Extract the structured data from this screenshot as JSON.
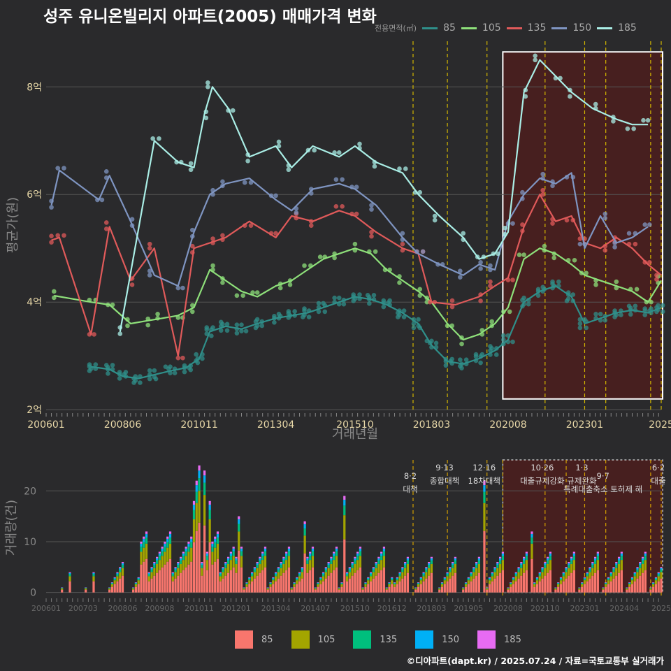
{
  "title": "성주 유니온빌리지 아파트(2005) 매매가격 변화",
  "legend_title": "전용면적(㎡)",
  "credit": "©디아파트(dapt.kr) / 2025.07.24 / 자료=국토교통부 실거래가",
  "colors": {
    "background": "#2a2a2c",
    "grid": "#555555",
    "policy_line": "#d4b800",
    "highlight_fill": "#4a1e1e",
    "highlight_border": "#ffffff"
  },
  "chart_data": [
    {
      "type": "line",
      "name": "price",
      "ylabel": "평균가(원)",
      "xlabel": "거래년월",
      "ylim": [
        1.95,
        8.9
      ],
      "x_range": [
        "2006-01",
        "2025-06"
      ],
      "yticks": [
        2,
        4,
        6,
        8
      ],
      "ytick_labels": [
        "2억",
        "4억",
        "6억",
        "8억"
      ],
      "xtick_labels": [
        "200601",
        "200806",
        "201011",
        "201304",
        "201510",
        "201803",
        "202008",
        "202301",
        "2025"
      ],
      "xtick_values": [
        "2006-01",
        "2008-06",
        "2010-11",
        "2013-04",
        "2015-10",
        "2018-03",
        "2020-08",
        "2023-01",
        "2025-06"
      ],
      "highlight": {
        "x_from": "2020-06",
        "x_to": "2025-06",
        "y_from": 2.2,
        "y_to": 8.65
      },
      "policy_lines": [
        "2017-08",
        "2018-09",
        "2019-12",
        "2021-10",
        "2023-01",
        "2023-09",
        "2025-02",
        "2025-06"
      ],
      "series": [
        {
          "name": "85",
          "color": "#2f8f8a",
          "x": [
            "2007-06",
            "2008-01",
            "2008-06",
            "2008-12",
            "2009-06",
            "2009-12",
            "2010-06",
            "2010-11",
            "2011-03",
            "2011-09",
            "2012-03",
            "2012-09",
            "2013-04",
            "2013-10",
            "2014-04",
            "2014-10",
            "2015-04",
            "2015-10",
            "2016-04",
            "2016-10",
            "2017-04",
            "2017-10",
            "2018-03",
            "2018-09",
            "2019-03",
            "2019-09",
            "2020-03",
            "2020-08",
            "2021-02",
            "2021-08",
            "2022-02",
            "2022-08",
            "2023-01",
            "2023-07",
            "2024-01",
            "2024-07",
            "2025-01",
            "2025-06"
          ],
          "y": [
            2.8,
            2.75,
            2.62,
            2.58,
            2.65,
            2.72,
            2.78,
            2.95,
            3.45,
            3.55,
            3.5,
            3.6,
            3.7,
            3.75,
            3.8,
            3.9,
            4.0,
            4.1,
            4.05,
            3.95,
            3.8,
            3.6,
            3.2,
            2.9,
            2.85,
            2.95,
            3.1,
            3.3,
            4.0,
            4.2,
            4.3,
            4.1,
            3.6,
            3.7,
            3.8,
            3.85,
            3.8,
            3.9
          ]
        },
        {
          "name": "105",
          "color": "#8ee07a",
          "x": [
            "2006-04",
            "2007-06",
            "2008-01",
            "2008-09",
            "2009-03",
            "2009-09",
            "2010-03",
            "2010-09",
            "2011-03",
            "2011-09",
            "2012-03",
            "2012-09",
            "2013-04",
            "2013-10",
            "2014-04",
            "2014-10",
            "2015-04",
            "2015-10",
            "2016-04",
            "2016-10",
            "2017-04",
            "2017-10",
            "2018-03",
            "2018-09",
            "2019-03",
            "2019-09",
            "2020-03",
            "2020-08",
            "2021-02",
            "2021-08",
            "2022-02",
            "2022-08",
            "2023-01",
            "2023-07",
            "2024-01",
            "2024-07",
            "2025-01",
            "2025-06"
          ],
          "y": [
            4.12,
            4.0,
            3.95,
            3.6,
            3.65,
            3.7,
            3.75,
            3.9,
            4.6,
            4.4,
            4.2,
            4.1,
            4.3,
            4.4,
            4.6,
            4.8,
            4.9,
            5.0,
            4.9,
            4.6,
            4.4,
            4.2,
            4.0,
            3.6,
            3.3,
            3.4,
            3.6,
            3.9,
            4.8,
            5.0,
            4.9,
            4.7,
            4.5,
            4.4,
            4.3,
            4.2,
            4.0,
            4.4
          ]
        },
        {
          "name": "135",
          "color": "#e05a5a",
          "x": [
            "2006-03",
            "2006-06",
            "2007-06",
            "2008-01",
            "2008-09",
            "2009-06",
            "2010-03",
            "2010-09",
            "2011-03",
            "2011-09",
            "2012-06",
            "2013-04",
            "2013-10",
            "2014-06",
            "2015-04",
            "2015-10",
            "2016-06",
            "2017-04",
            "2017-10",
            "2018-03",
            "2018-12",
            "2019-09",
            "2020-03",
            "2020-08",
            "2021-02",
            "2021-08",
            "2022-02",
            "2022-08",
            "2023-01",
            "2023-07",
            "2024-01",
            "2024-07",
            "2025-01",
            "2025-06"
          ],
          "y": [
            5.15,
            5.2,
            3.4,
            5.4,
            4.4,
            5.0,
            3.0,
            5.0,
            5.1,
            5.2,
            5.5,
            5.2,
            5.6,
            5.5,
            5.7,
            5.6,
            5.3,
            5.0,
            4.9,
            4.0,
            3.95,
            4.1,
            4.3,
            4.45,
            5.4,
            6.0,
            5.5,
            5.6,
            5.1,
            5.0,
            5.2,
            5.0,
            4.7,
            4.5
          ]
        },
        {
          "name": "150",
          "color": "#7f95c2",
          "x": [
            "2006-03",
            "2006-06",
            "2007-09",
            "2008-01",
            "2008-09",
            "2009-06",
            "2010-03",
            "2010-09",
            "2011-03",
            "2011-09",
            "2012-06",
            "2013-04",
            "2013-10",
            "2014-06",
            "2015-04",
            "2015-10",
            "2016-06",
            "2017-04",
            "2017-10",
            "2018-06",
            "2019-03",
            "2019-09",
            "2020-03",
            "2020-08",
            "2021-02",
            "2021-08",
            "2022-02",
            "2022-08",
            "2023-01",
            "2023-07",
            "2024-01",
            "2024-07",
            "2025-01"
          ],
          "y": [
            5.8,
            6.45,
            5.9,
            6.35,
            5.5,
            4.5,
            4.3,
            5.3,
            6.0,
            6.2,
            6.3,
            5.9,
            5.7,
            6.1,
            6.2,
            6.1,
            5.8,
            5.2,
            4.9,
            4.7,
            4.5,
            4.7,
            4.6,
            5.5,
            6.0,
            6.3,
            6.2,
            6.4,
            5.0,
            5.6,
            5.1,
            5.2,
            5.4
          ]
        },
        {
          "name": "185",
          "color": "#aaeee6",
          "x": [
            "2008-05",
            "2009-06",
            "2010-03",
            "2010-09",
            "2011-01",
            "2011-04",
            "2011-10",
            "2012-06",
            "2013-04",
            "2013-10",
            "2014-06",
            "2015-04",
            "2015-10",
            "2016-06",
            "2017-04",
            "2017-10",
            "2018-06",
            "2019-03",
            "2019-09",
            "2020-03",
            "2020-08",
            "2021-02",
            "2021-08",
            "2022-02",
            "2022-08",
            "2023-04",
            "2024-01",
            "2024-07",
            "2025-01"
          ],
          "y": [
            3.45,
            7.0,
            6.6,
            6.5,
            7.5,
            8.0,
            7.6,
            6.7,
            6.9,
            6.5,
            6.9,
            6.7,
            6.9,
            6.6,
            6.4,
            6.0,
            5.6,
            5.2,
            4.8,
            4.9,
            5.3,
            7.9,
            8.5,
            8.2,
            7.9,
            7.6,
            7.4,
            7.3,
            7.3
          ]
        }
      ]
    },
    {
      "type": "bar",
      "name": "volume",
      "ylabel": "거래량(건)",
      "ylim": [
        -0.6,
        26.5
      ],
      "yticks": [
        0,
        10,
        20
      ],
      "ytick_labels": [
        "0",
        "10",
        "20"
      ],
      "x_range": [
        "2006-01",
        "2025-06"
      ],
      "xtick_labels": [
        "200601",
        "200703",
        "200806",
        "200908",
        "201011",
        "201201",
        "201304",
        "201407",
        "201510",
        "201612",
        "201803",
        "201905",
        "202008",
        "202110",
        "202301",
        "202404",
        "2025"
      ],
      "xtick_values": [
        "2006-01",
        "2007-03",
        "2008-06",
        "2009-08",
        "2010-11",
        "2012-01",
        "2013-04",
        "2014-07",
        "2015-10",
        "2016-12",
        "2018-03",
        "2019-05",
        "2020-08",
        "2021-10",
        "2023-01",
        "2024-04",
        "2025-06"
      ],
      "highlight": {
        "x_from": "2020-06",
        "x_to": "2025-06"
      },
      "policy_lines": [
        "2017-08",
        "2018-09",
        "2019-12",
        "2020-06",
        "2021-10",
        "2022-06",
        "2023-01",
        "2023-09",
        "2025-02",
        "2025-06"
      ],
      "annotations": [
        {
          "x": "2017-08",
          "date": "8·2",
          "label": "대책",
          "row": 1
        },
        {
          "x": "2018-09",
          "date": "9·13",
          "label": "종합대책",
          "row": 0
        },
        {
          "x": "2019-12",
          "date": "12·16",
          "label": "18차대책",
          "row": 0
        },
        {
          "x": "2021-10",
          "date": "10·26",
          "label": "대출규제강화",
          "row": 0
        },
        {
          "x": "2023-01",
          "date": "1·3",
          "label": "규제완화",
          "row": 0
        },
        {
          "x": "2023-09",
          "date": "9·7",
          "label": "특례대출축소 토허제 해",
          "row": 1
        },
        {
          "x": "2025-06",
          "date": "6·2",
          "label": "대출",
          "row": 0
        }
      ],
      "series_names": [
        "85",
        "105",
        "135",
        "150",
        "185"
      ],
      "series_colors": [
        "#f8766d",
        "#a3a500",
        "#00bf7d",
        "#00b0f6",
        "#e76bf3"
      ],
      "months": [
        "2010-09",
        "2010-10",
        "2010-11",
        "2011-01",
        "2011-03",
        "2012-02",
        "2014-03",
        "2015-06",
        "2019-11",
        "2021-05"
      ],
      "totals": [
        18,
        22,
        25,
        24,
        18,
        15,
        14,
        19,
        22,
        12
      ],
      "composition": [
        0.55,
        0.25,
        0.1,
        0.06,
        0.04
      ]
    }
  ],
  "legend_bottom": [
    "85",
    "105",
    "135",
    "150",
    "185"
  ]
}
